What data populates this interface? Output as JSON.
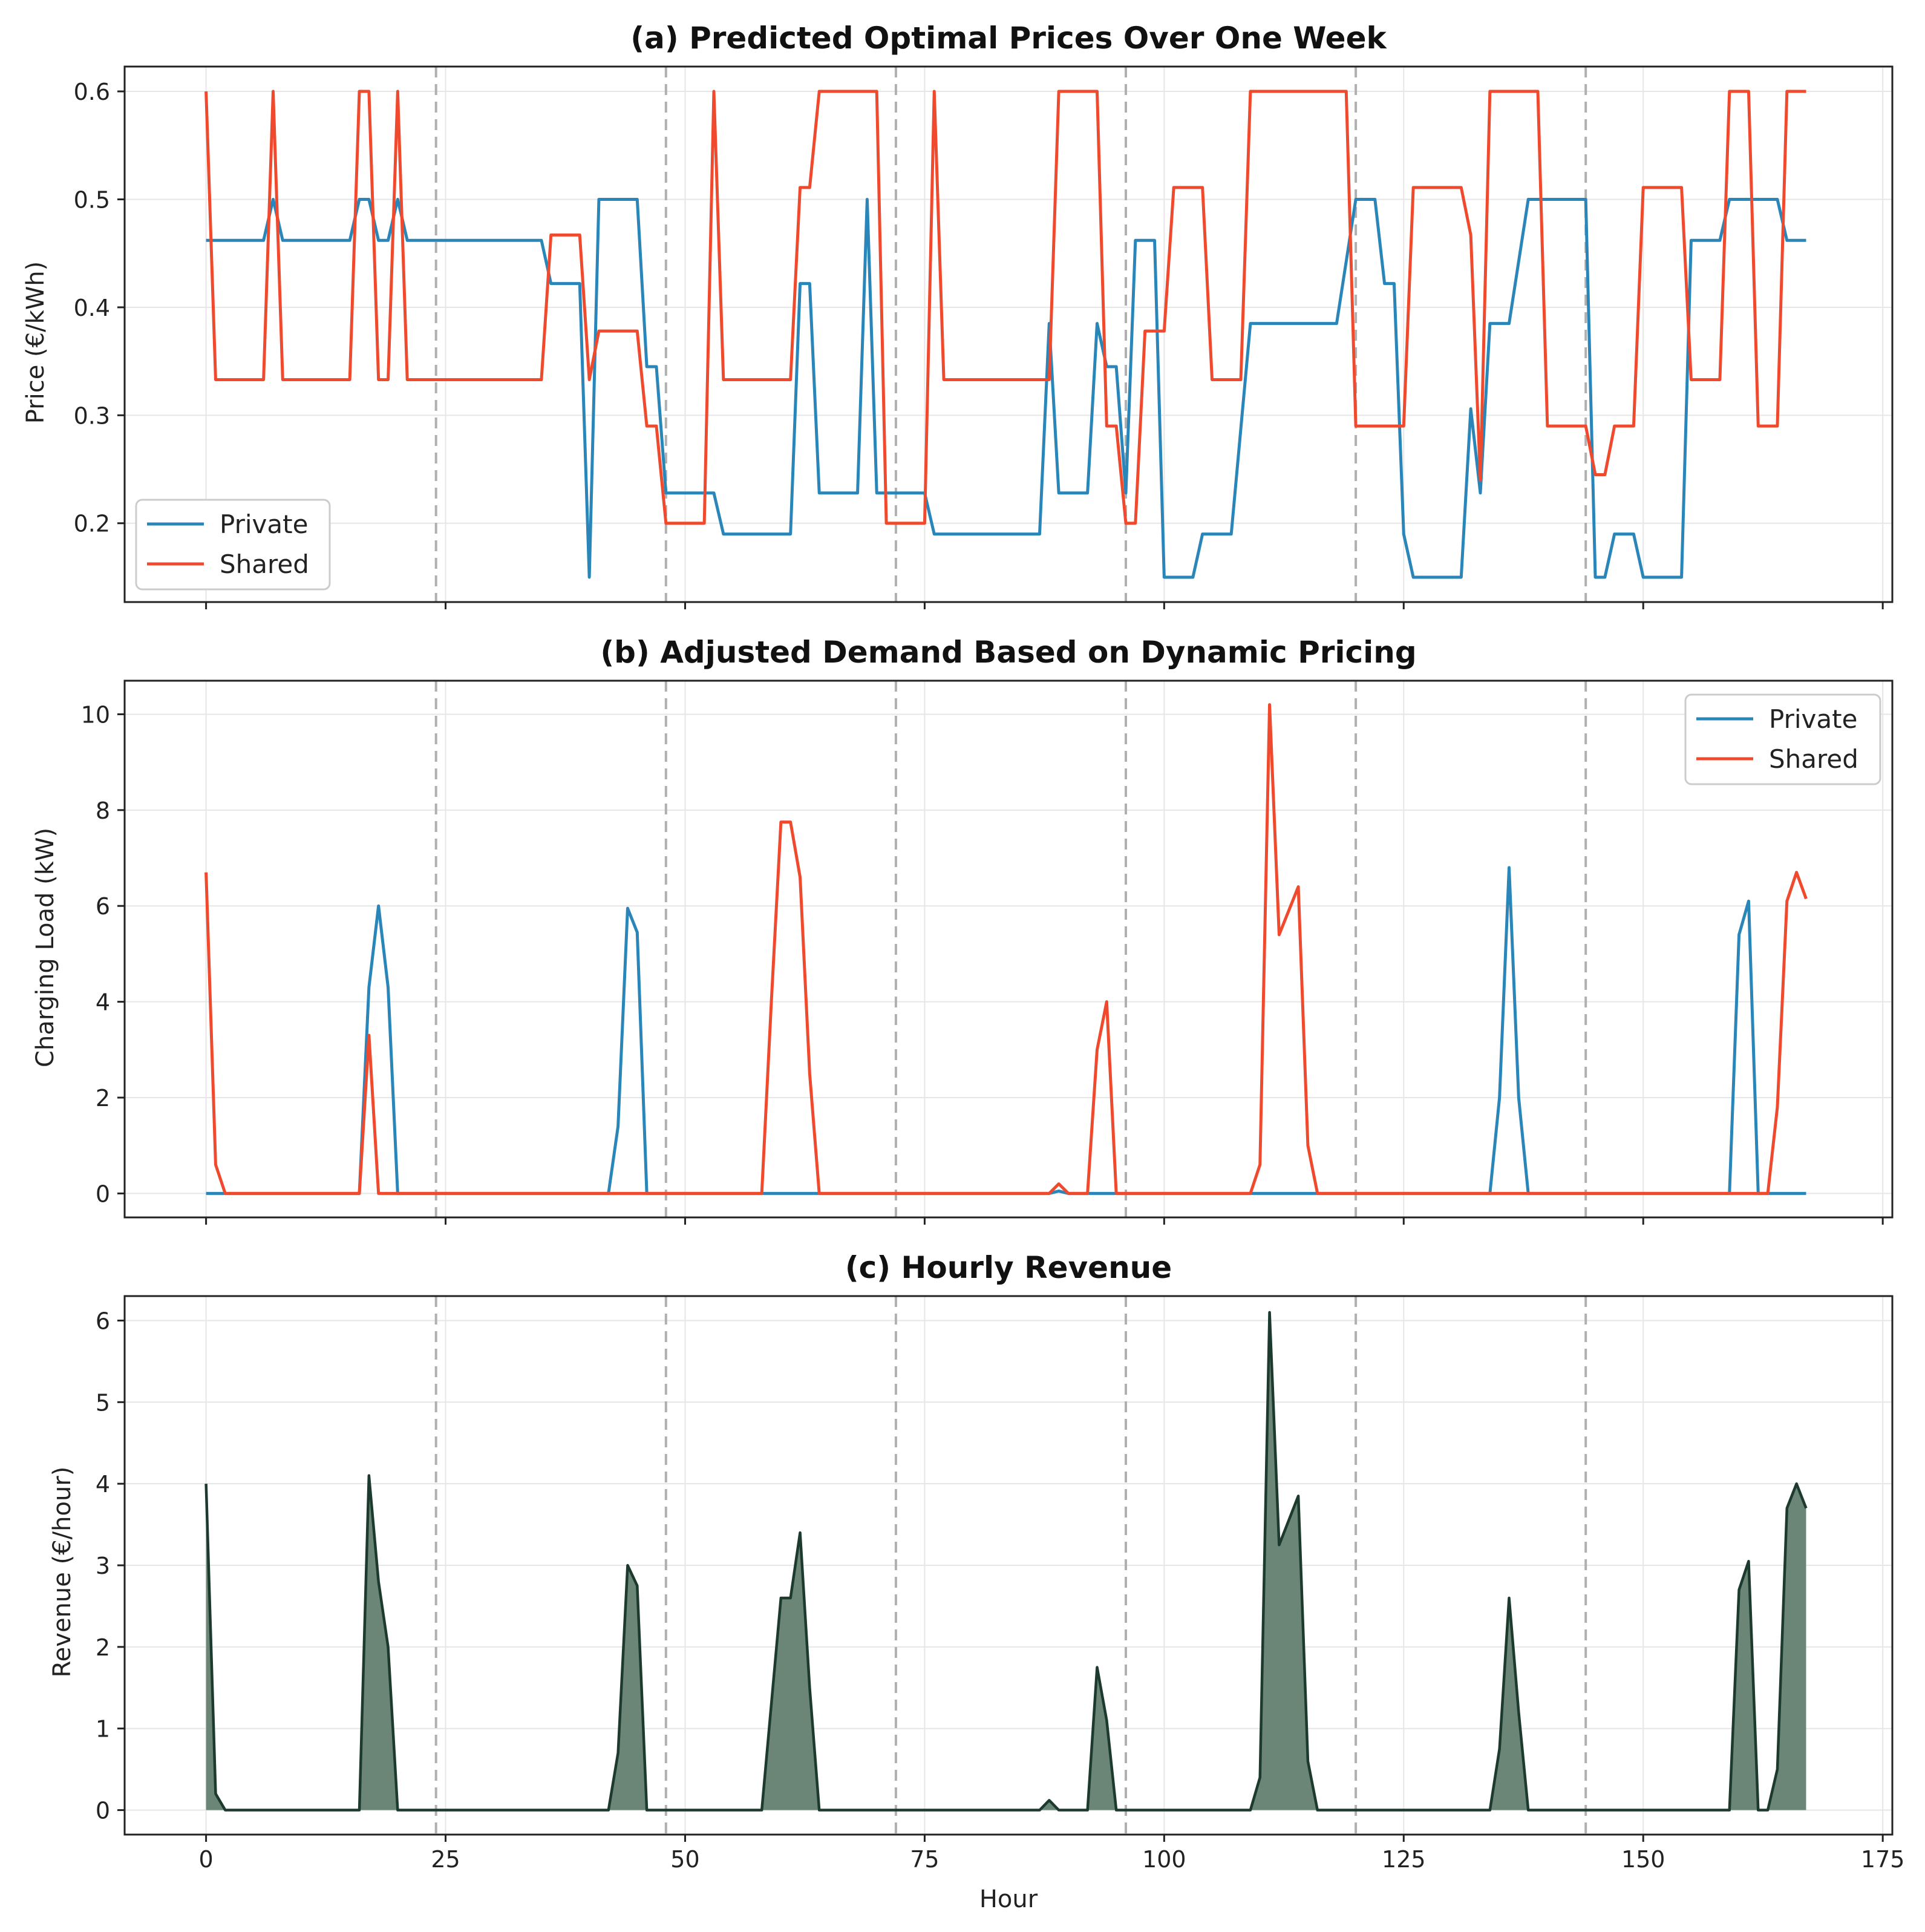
{
  "colors": {
    "private": "#2a86b9",
    "shared": "#f04a2e",
    "revenue_fill": "#6b8577",
    "revenue_line": "#1d3a2e",
    "day_divider": "#b0b0b0"
  },
  "chart_data": [
    {
      "type": "line",
      "title": "(a) Predicted Optimal Prices Over One Week",
      "xlabel": "",
      "ylabel": "Price (€/kWh)",
      "xlim": [
        -8.5,
        176
      ],
      "ylim": [
        0.127,
        0.623
      ],
      "xticks": [
        0,
        25,
        50,
        75,
        100,
        125,
        150,
        175
      ],
      "xtick_labels": [],
      "yticks": [
        0.2,
        0.3,
        0.4,
        0.5,
        0.6
      ],
      "ytick_labels": [
        "0.2",
        "0.3",
        "0.4",
        "0.5",
        "0.6"
      ],
      "day_dividers": [
        24,
        48,
        72,
        96,
        120,
        144
      ],
      "grid": true,
      "legend_position": "lower-left",
      "series": [
        {
          "name": "Private",
          "color": "#2a86b9",
          "points": [
            [
              0,
              0.462
            ],
            [
              6,
              0.462
            ],
            [
              7,
              0.5
            ],
            [
              8,
              0.462
            ],
            [
              15,
              0.462
            ],
            [
              16,
              0.5
            ],
            [
              17,
              0.5
            ],
            [
              18,
              0.462
            ],
            [
              19,
              0.462
            ],
            [
              20,
              0.5
            ],
            [
              21,
              0.462
            ],
            [
              35,
              0.462
            ],
            [
              36,
              0.422
            ],
            [
              39,
              0.422
            ],
            [
              40,
              0.15
            ],
            [
              41,
              0.5
            ],
            [
              45,
              0.5
            ],
            [
              46,
              0.345
            ],
            [
              47,
              0.345
            ],
            [
              48,
              0.228
            ],
            [
              53,
              0.228
            ],
            [
              54,
              0.19
            ],
            [
              61,
              0.19
            ],
            [
              62,
              0.422
            ],
            [
              63,
              0.422
            ],
            [
              64,
              0.228
            ],
            [
              68,
              0.228
            ],
            [
              69,
              0.5
            ],
            [
              70,
              0.228
            ],
            [
              75,
              0.228
            ],
            [
              76,
              0.19
            ],
            [
              87,
              0.19
            ],
            [
              88,
              0.385
            ],
            [
              89,
              0.228
            ],
            [
              92,
              0.228
            ],
            [
              93,
              0.385
            ],
            [
              94,
              0.345
            ],
            [
              95,
              0.345
            ],
            [
              96,
              0.228
            ],
            [
              97,
              0.462
            ],
            [
              99,
              0.462
            ],
            [
              100,
              0.15
            ],
            [
              103,
              0.15
            ],
            [
              104,
              0.19
            ],
            [
              107,
              0.19
            ],
            [
              109,
              0.385
            ],
            [
              118,
              0.385
            ],
            [
              120,
              0.5
            ],
            [
              122,
              0.5
            ],
            [
              123,
              0.422
            ],
            [
              124,
              0.422
            ],
            [
              125,
              0.19
            ],
            [
              126,
              0.15
            ],
            [
              131,
              0.15
            ],
            [
              132,
              0.306
            ],
            [
              133,
              0.228
            ],
            [
              134,
              0.385
            ],
            [
              136,
              0.385
            ],
            [
              138,
              0.5
            ],
            [
              144,
              0.5
            ],
            [
              145,
              0.15
            ],
            [
              146,
              0.15
            ],
            [
              147,
              0.19
            ],
            [
              149,
              0.19
            ],
            [
              150,
              0.15
            ],
            [
              154,
              0.15
            ],
            [
              155,
              0.462
            ],
            [
              158,
              0.462
            ],
            [
              159,
              0.5
            ],
            [
              164,
              0.5
            ],
            [
              165,
              0.462
            ],
            [
              167,
              0.462
            ]
          ]
        },
        {
          "name": "Shared",
          "color": "#f04a2e",
          "points": [
            [
              0,
              0.6
            ],
            [
              1,
              0.333
            ],
            [
              6,
              0.333
            ],
            [
              7,
              0.6
            ],
            [
              8,
              0.333
            ],
            [
              15,
              0.333
            ],
            [
              16,
              0.6
            ],
            [
              17,
              0.6
            ],
            [
              18,
              0.333
            ],
            [
              19,
              0.333
            ],
            [
              20,
              0.6
            ],
            [
              21,
              0.333
            ],
            [
              35,
              0.333
            ],
            [
              36,
              0.467
            ],
            [
              39,
              0.467
            ],
            [
              40,
              0.333
            ],
            [
              41,
              0.378
            ],
            [
              45,
              0.378
            ],
            [
              46,
              0.29
            ],
            [
              47,
              0.29
            ],
            [
              48,
              0.2
            ],
            [
              52,
              0.2
            ],
            [
              53,
              0.6
            ],
            [
              54,
              0.333
            ],
            [
              61,
              0.333
            ],
            [
              62,
              0.511
            ],
            [
              63,
              0.511
            ],
            [
              64,
              0.6
            ],
            [
              68,
              0.6
            ],
            [
              70,
              0.6
            ],
            [
              71,
              0.2
            ],
            [
              75,
              0.2
            ],
            [
              76,
              0.6
            ],
            [
              77,
              0.333
            ],
            [
              88,
              0.333
            ],
            [
              89,
              0.6
            ],
            [
              93,
              0.6
            ],
            [
              94,
              0.29
            ],
            [
              95,
              0.29
            ],
            [
              96,
              0.2
            ],
            [
              97,
              0.2
            ],
            [
              98,
              0.378
            ],
            [
              100,
              0.378
            ],
            [
              101,
              0.511
            ],
            [
              104,
              0.511
            ],
            [
              105,
              0.333
            ],
            [
              108,
              0.333
            ],
            [
              109,
              0.6
            ],
            [
              119,
              0.6
            ],
            [
              120,
              0.29
            ],
            [
              125,
              0.29
            ],
            [
              126,
              0.511
            ],
            [
              131,
              0.511
            ],
            [
              132,
              0.467
            ],
            [
              133,
              0.24
            ],
            [
              134,
              0.6
            ],
            [
              139,
              0.6
            ],
            [
              140,
              0.29
            ],
            [
              144,
              0.29
            ],
            [
              145,
              0.245
            ],
            [
              146,
              0.245
            ],
            [
              147,
              0.29
            ],
            [
              149,
              0.29
            ],
            [
              150,
              0.511
            ],
            [
              154,
              0.511
            ],
            [
              155,
              0.333
            ],
            [
              158,
              0.333
            ],
            [
              159,
              0.6
            ],
            [
              161,
              0.6
            ],
            [
              162,
              0.29
            ],
            [
              164,
              0.29
            ],
            [
              165,
              0.6
            ],
            [
              167,
              0.6
            ]
          ]
        }
      ]
    },
    {
      "type": "line",
      "title": "(b) Adjusted Demand Based on Dynamic Pricing",
      "xlabel": "",
      "ylabel": "Charging Load (kW)",
      "xlim": [
        -8.5,
        176
      ],
      "ylim": [
        -0.5,
        10.7
      ],
      "xticks": [
        0,
        25,
        50,
        75,
        100,
        125,
        150,
        175
      ],
      "xtick_labels": [],
      "yticks": [
        0,
        2,
        4,
        6,
        8,
        10
      ],
      "ytick_labels": [
        "0",
        "2",
        "4",
        "6",
        "8",
        "10"
      ],
      "day_dividers": [
        24,
        48,
        72,
        96,
        120,
        144
      ],
      "grid": true,
      "legend_position": "upper-right",
      "series": [
        {
          "name": "Private",
          "color": "#2a86b9",
          "points": [
            [
              0,
              0
            ],
            [
              16,
              0
            ],
            [
              17,
              4.3
            ],
            [
              18,
              6.0
            ],
            [
              19,
              4.3
            ],
            [
              20,
              0
            ],
            [
              42,
              0
            ],
            [
              43,
              1.4
            ],
            [
              44,
              5.95
            ],
            [
              45,
              5.45
            ],
            [
              46,
              0
            ],
            [
              88,
              0
            ],
            [
              89,
              0.05
            ],
            [
              90,
              0
            ],
            [
              134,
              0
            ],
            [
              135,
              2.0
            ],
            [
              136,
              6.8
            ],
            [
              137,
              2.0
            ],
            [
              138,
              0
            ],
            [
              159,
              0
            ],
            [
              160,
              5.4
            ],
            [
              161,
              6.1
            ],
            [
              162,
              0
            ],
            [
              167,
              0
            ]
          ]
        },
        {
          "name": "Shared",
          "color": "#f04a2e",
          "points": [
            [
              0,
              6.7
            ],
            [
              1,
              0.6
            ],
            [
              2,
              0
            ],
            [
              16,
              0
            ],
            [
              17,
              3.3
            ],
            [
              18,
              0
            ],
            [
              58,
              0
            ],
            [
              59,
              4.0
            ],
            [
              60,
              7.75
            ],
            [
              61,
              7.75
            ],
            [
              62,
              6.6
            ],
            [
              63,
              2.5
            ],
            [
              64,
              0
            ],
            [
              88,
              0
            ],
            [
              89,
              0.2
            ],
            [
              90,
              0
            ],
            [
              92,
              0
            ],
            [
              93,
              3.0
            ],
            [
              94,
              4.0
            ],
            [
              95,
              0
            ],
            [
              109,
              0
            ],
            [
              110,
              0.6
            ],
            [
              111,
              10.2
            ],
            [
              112,
              5.4
            ],
            [
              114,
              6.4
            ],
            [
              115,
              1.0
            ],
            [
              116,
              0
            ],
            [
              163,
              0
            ],
            [
              164,
              1.8
            ],
            [
              165,
              6.1
            ],
            [
              166,
              6.7
            ],
            [
              167,
              6.15
            ]
          ]
        }
      ]
    },
    {
      "type": "area",
      "title": "(c) Hourly Revenue",
      "xlabel": "Hour",
      "ylabel": "Revenue (€/hour)",
      "xlim": [
        -8.5,
        176
      ],
      "ylim": [
        -0.3,
        6.3
      ],
      "xticks": [
        0,
        25,
        50,
        75,
        100,
        125,
        150,
        175
      ],
      "xtick_labels": [
        "0",
        "25",
        "50",
        "75",
        "100",
        "125",
        "150",
        "175"
      ],
      "yticks": [
        0,
        1,
        2,
        3,
        4,
        5,
        6
      ],
      "ytick_labels": [
        "0",
        "1",
        "2",
        "3",
        "4",
        "5",
        "6"
      ],
      "day_dividers": [
        24,
        48,
        72,
        96,
        120,
        144
      ],
      "grid": true,
      "series": [
        {
          "name": "",
          "color": "#1d3a2e",
          "points": [
            [
              0,
              4.0
            ],
            [
              1,
              0.2
            ],
            [
              2,
              0
            ],
            [
              16,
              0
            ],
            [
              17,
              4.1
            ],
            [
              18,
              2.8
            ],
            [
              19,
              2.0
            ],
            [
              20,
              0
            ],
            [
              42,
              0
            ],
            [
              43,
              0.7
            ],
            [
              44,
              3.0
            ],
            [
              45,
              2.75
            ],
            [
              46,
              0
            ],
            [
              58,
              0
            ],
            [
              59,
              1.3
            ],
            [
              60,
              2.6
            ],
            [
              61,
              2.6
            ],
            [
              62,
              3.4
            ],
            [
              63,
              1.5
            ],
            [
              64,
              0
            ],
            [
              87,
              0
            ],
            [
              88,
              0.12
            ],
            [
              89,
              0
            ],
            [
              92,
              0
            ],
            [
              93,
              1.75
            ],
            [
              94,
              1.1
            ],
            [
              95,
              0
            ],
            [
              109,
              0
            ],
            [
              110,
              0.4
            ],
            [
              111,
              6.1
            ],
            [
              112,
              3.25
            ],
            [
              114,
              3.85
            ],
            [
              115,
              0.6
            ],
            [
              116,
              0
            ],
            [
              134,
              0
            ],
            [
              135,
              0.75
            ],
            [
              136,
              2.6
            ],
            [
              137,
              1.2
            ],
            [
              138,
              0
            ],
            [
              159,
              0
            ],
            [
              160,
              2.7
            ],
            [
              161,
              3.05
            ],
            [
              162,
              0
            ],
            [
              163,
              0
            ],
            [
              164,
              0.5
            ],
            [
              165,
              3.7
            ],
            [
              166,
              4.0
            ],
            [
              167,
              3.7
            ]
          ]
        }
      ]
    }
  ]
}
